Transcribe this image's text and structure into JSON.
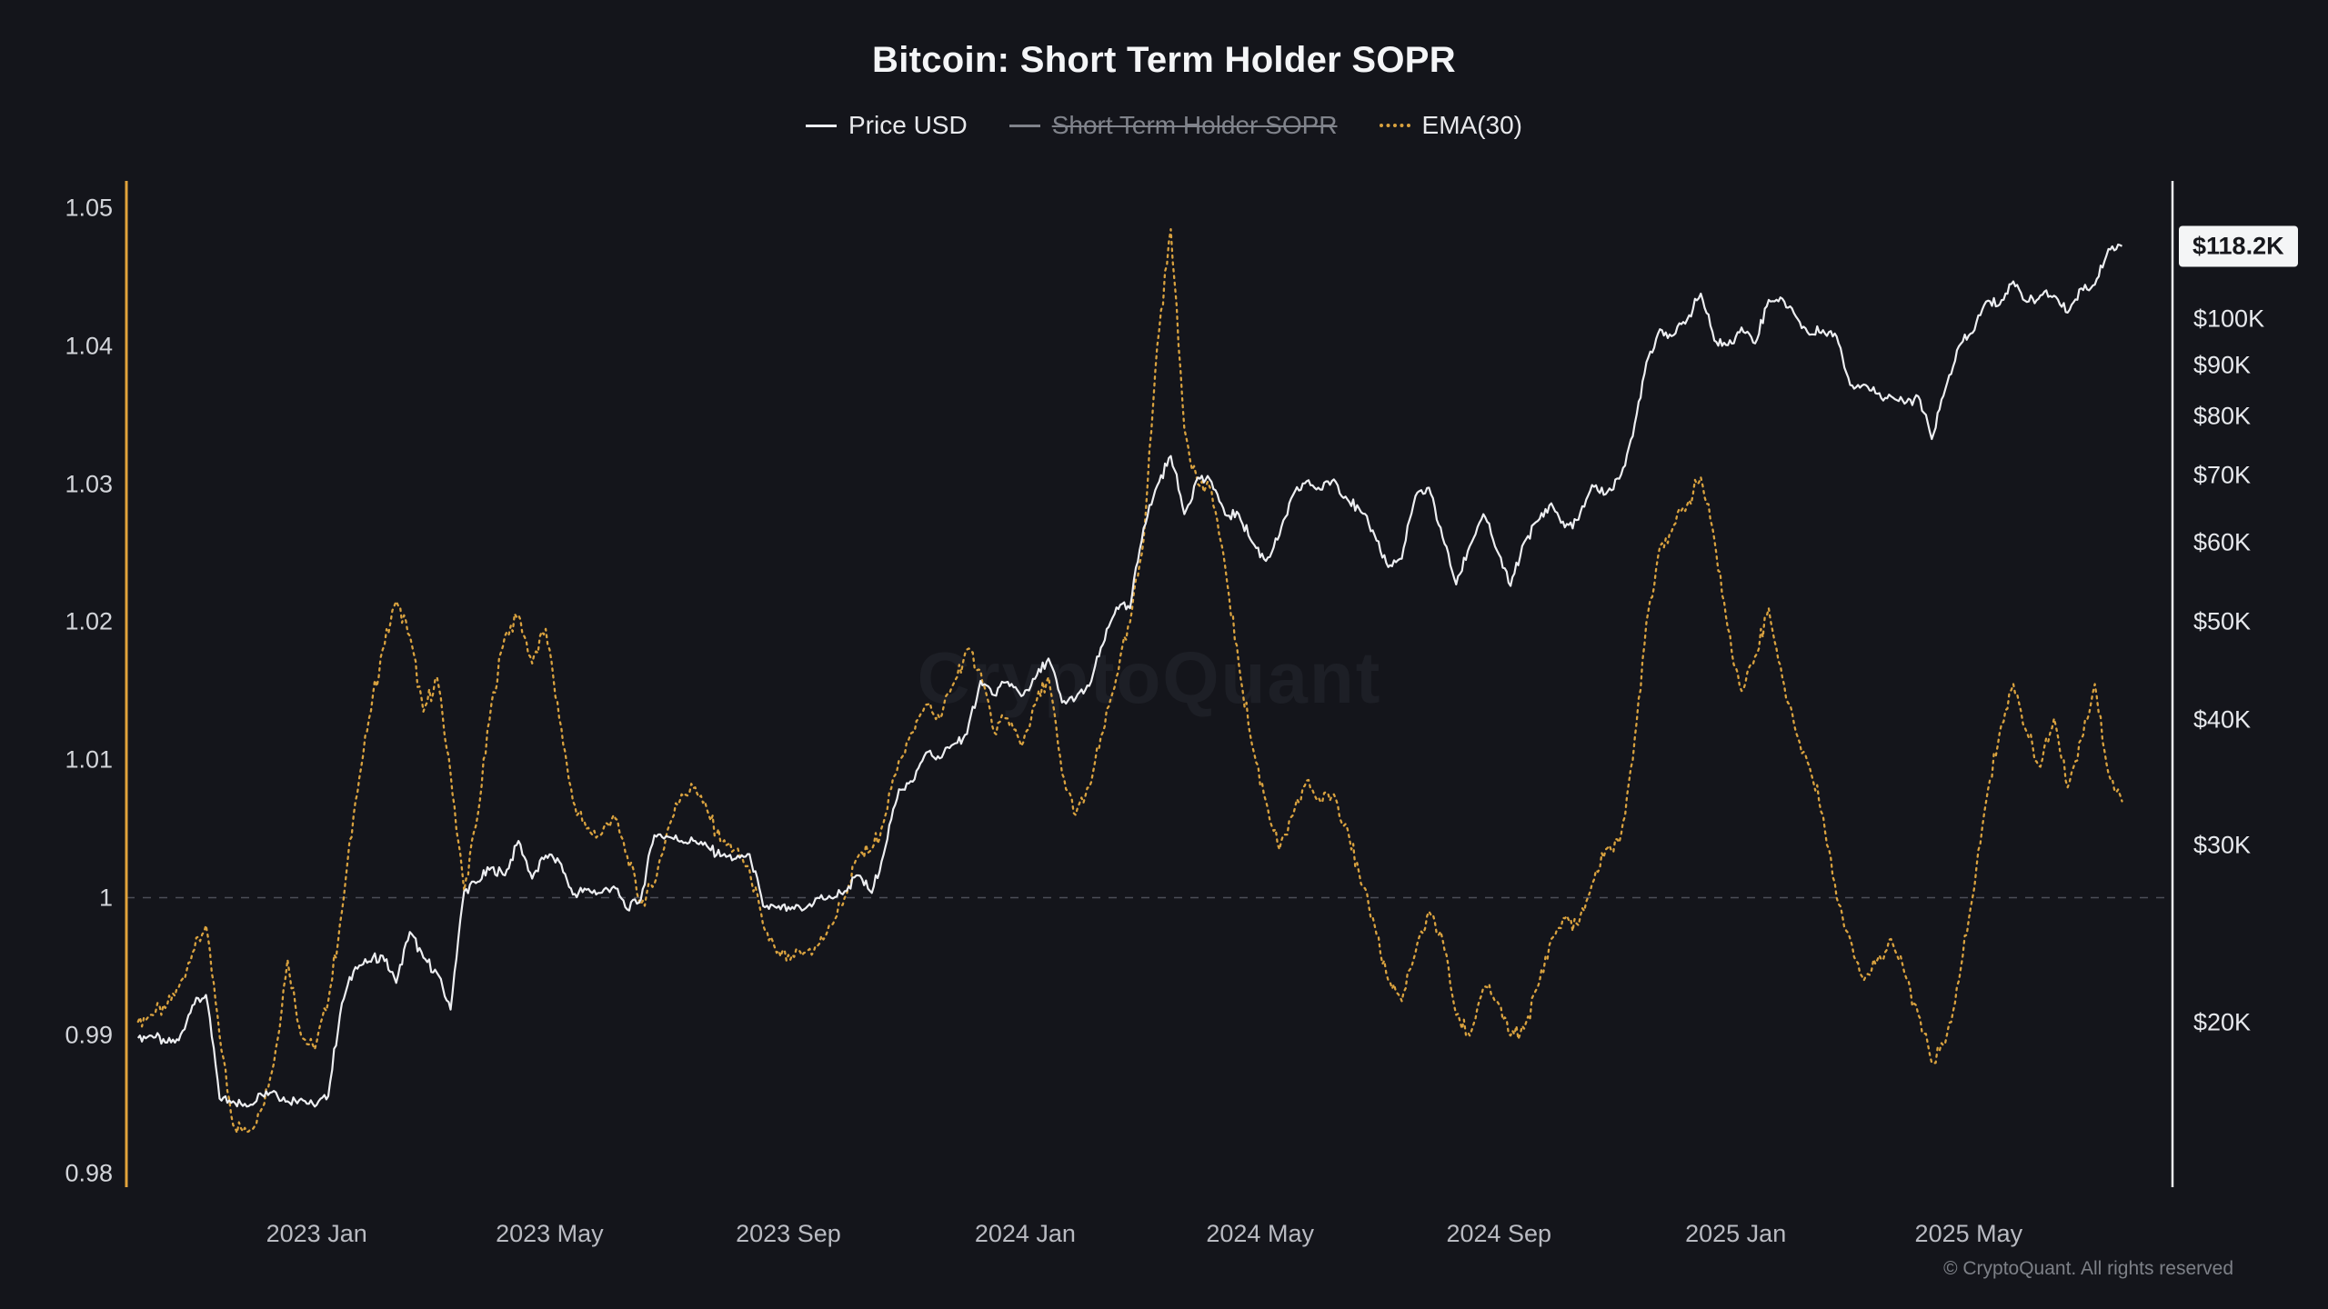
{
  "page": {
    "background": "#14151b"
  },
  "header": {
    "title": "Bitcoin: Short Term Holder SOPR"
  },
  "legend": {
    "items": [
      {
        "label": "Price USD",
        "color": "#edeef1",
        "style": "solid",
        "active": true
      },
      {
        "label": "Short Term Holder SOPR",
        "color": "#80838b",
        "style": "solid",
        "active": false
      },
      {
        "label": "EMA(30)",
        "color": "#d9a23f",
        "style": "dotted",
        "active": true
      }
    ]
  },
  "price_tag": {
    "label": "$118.2K",
    "value_k": 118.2
  },
  "watermark": {
    "text": "CryptoQuant"
  },
  "footer": {
    "copyright": "© CryptoQuant. All rights reserved"
  },
  "axes": {
    "left": {
      "labels": [
        "1.05",
        "1.04",
        "1.03",
        "1.02",
        "1.01",
        "1",
        "0.99",
        "0.98"
      ],
      "values": [
        1.05,
        1.04,
        1.03,
        1.02,
        1.01,
        1,
        0.99,
        0.98
      ]
    },
    "right": {
      "labels": [
        "$100K",
        "$90K",
        "$80K",
        "$70K",
        "$60K",
        "$50K",
        "$40K",
        "$30K",
        "$20K"
      ],
      "values_k": [
        100,
        90,
        80,
        70,
        60,
        50,
        40,
        30,
        20
      ],
      "scale": "log"
    },
    "x": {
      "labels": [
        "2023 Jan",
        "2023 May",
        "2023 Sep",
        "2024 Jan",
        "2024 May",
        "2024 Sep",
        "2025 Jan",
        "2025 May"
      ],
      "dates": [
        "2023-01-01",
        "2023-05-01",
        "2023-09-01",
        "2024-01-01",
        "2024-05-01",
        "2024-09-01",
        "2025-01-01",
        "2025-05-01"
      ]
    }
  },
  "chart_data": {
    "type": "line",
    "title": "Bitcoin: Short Term Holder SOPR",
    "x_domain": [
      "2022-09-25",
      "2025-08-14"
    ],
    "left_axis_range": [
      0.979,
      1.052
    ],
    "right_axis_range_k": [
      13.72,
      137.2
    ],
    "baseline": {
      "axis": "left",
      "value": 1
    },
    "grid": "off",
    "legend_position": "top",
    "x_dates": [
      "2022-10-01",
      "2022-10-08",
      "2022-10-15",
      "2022-10-22",
      "2022-10-29",
      "2022-11-05",
      "2022-11-12",
      "2022-11-19",
      "2022-11-26",
      "2022-12-03",
      "2022-12-10",
      "2022-12-17",
      "2022-12-24",
      "2022-12-31",
      "2023-01-07",
      "2023-01-14",
      "2023-01-21",
      "2023-01-28",
      "2023-02-04",
      "2023-02-11",
      "2023-02-18",
      "2023-02-25",
      "2023-03-04",
      "2023-03-11",
      "2023-03-18",
      "2023-03-25",
      "2023-04-01",
      "2023-04-08",
      "2023-04-15",
      "2023-04-22",
      "2023-04-29",
      "2023-05-06",
      "2023-05-13",
      "2023-05-20",
      "2023-05-27",
      "2023-06-03",
      "2023-06-10",
      "2023-06-17",
      "2023-06-24",
      "2023-07-01",
      "2023-07-08",
      "2023-07-15",
      "2023-07-22",
      "2023-07-29",
      "2023-08-05",
      "2023-08-12",
      "2023-08-19",
      "2023-08-26",
      "2023-09-02",
      "2023-09-09",
      "2023-09-16",
      "2023-09-23",
      "2023-09-30",
      "2023-10-07",
      "2023-10-14",
      "2023-10-21",
      "2023-10-28",
      "2023-11-04",
      "2023-11-11",
      "2023-11-18",
      "2023-11-25",
      "2023-12-02",
      "2023-12-09",
      "2023-12-16",
      "2023-12-23",
      "2023-12-30",
      "2024-01-06",
      "2024-01-13",
      "2024-01-20",
      "2024-01-27",
      "2024-02-03",
      "2024-02-10",
      "2024-02-17",
      "2024-02-24",
      "2024-03-02",
      "2024-03-09",
      "2024-03-16",
      "2024-03-23",
      "2024-03-30",
      "2024-04-06",
      "2024-04-13",
      "2024-04-20",
      "2024-04-27",
      "2024-05-04",
      "2024-05-11",
      "2024-05-18",
      "2024-05-25",
      "2024-06-01",
      "2024-06-08",
      "2024-06-15",
      "2024-06-22",
      "2024-06-29",
      "2024-07-06",
      "2024-07-13",
      "2024-07-20",
      "2024-07-27",
      "2024-08-03",
      "2024-08-10",
      "2024-08-17",
      "2024-08-24",
      "2024-08-31",
      "2024-09-07",
      "2024-09-14",
      "2024-09-21",
      "2024-09-28",
      "2024-10-05",
      "2024-10-12",
      "2024-10-19",
      "2024-10-26",
      "2024-11-02",
      "2024-11-09",
      "2024-11-16",
      "2024-11-23",
      "2024-11-30",
      "2024-12-07",
      "2024-12-14",
      "2024-12-21",
      "2024-12-28",
      "2025-01-04",
      "2025-01-11",
      "2025-01-18",
      "2025-01-25",
      "2025-02-01",
      "2025-02-08",
      "2025-02-15",
      "2025-02-22",
      "2025-03-01",
      "2025-03-08",
      "2025-03-15",
      "2025-03-22",
      "2025-03-29",
      "2025-04-05",
      "2025-04-12",
      "2025-04-19",
      "2025-04-26",
      "2025-05-03",
      "2025-05-10",
      "2025-05-17",
      "2025-05-24",
      "2025-05-31",
      "2025-06-07",
      "2025-06-14",
      "2025-06-21",
      "2025-06-28",
      "2025-07-05",
      "2025-07-12",
      "2025-07-19"
    ],
    "series": [
      {
        "name": "Price USD",
        "axis": "right",
        "unit": "K USD",
        "color": "#edeef1",
        "line": "solid",
        "hidden": false,
        "values": [
          19.3,
          19.4,
          19.1,
          19.2,
          20.8,
          21.3,
          16.8,
          16.7,
          16.5,
          17.0,
          17.1,
          16.7,
          16.8,
          16.5,
          16.9,
          20.9,
          22.7,
          23.0,
          23.3,
          21.9,
          24.6,
          23.2,
          22.4,
          20.6,
          27.0,
          27.6,
          28.5,
          28.0,
          30.3,
          27.8,
          29.3,
          28.9,
          26.8,
          27.1,
          26.9,
          27.3,
          25.9,
          26.5,
          30.7,
          30.6,
          30.3,
          30.3,
          29.8,
          29.3,
          29.1,
          29.4,
          26.1,
          26.0,
          25.9,
          25.9,
          26.6,
          26.6,
          27.0,
          28.0,
          26.9,
          29.9,
          34.1,
          34.7,
          37.1,
          36.6,
          37.8,
          38.7,
          43.7,
          42.3,
          43.6,
          42.2,
          43.9,
          46.0,
          41.6,
          42.0,
          43.2,
          47.5,
          51.7,
          51.6,
          62.0,
          68.3,
          73.1,
          64.0,
          69.6,
          68.9,
          63.9,
          64.0,
          60.0,
          57.5,
          61.0,
          66.9,
          69.0,
          67.7,
          69.3,
          66.2,
          64.3,
          61.0,
          56.7,
          57.8,
          66.7,
          68.0,
          60.7,
          54.5,
          59.5,
          64.0,
          58.9,
          54.3,
          60.0,
          63.0,
          65.6,
          62.1,
          63.2,
          68.4,
          67.0,
          69.4,
          76.5,
          90.6,
          97.7,
          96.4,
          99.9,
          106.0,
          95.2,
          94.2,
          98.1,
          94.6,
          104.5,
          104.8,
          100.6,
          96.5,
          97.5,
          96.1,
          86.0,
          86.1,
          84.3,
          83.8,
          82.4,
          83.8,
          76.0,
          85.2,
          94.0,
          96.9,
          104.1,
          103.4,
          109.0,
          104.0,
          105.6,
          105.5,
          101.5,
          107.3,
          108.2,
          117.4,
          118.2
        ]
      },
      {
        "name": "Short Term Holder SOPR",
        "axis": "left",
        "color": "#80838b",
        "line": "solid",
        "hidden": true,
        "values": []
      },
      {
        "name": "EMA(30)",
        "axis": "left",
        "color": "#d9a23f",
        "line": "dotted",
        "hidden": false,
        "values": [
          0.991,
          0.9915,
          0.992,
          0.9935,
          0.996,
          0.998,
          0.99,
          0.9835,
          0.983,
          0.9845,
          0.988,
          0.9955,
          0.99,
          0.989,
          0.9925,
          0.999,
          1.007,
          1.013,
          1.018,
          1.0215,
          1.019,
          1.0135,
          1.016,
          1.009,
          1.0005,
          1.006,
          1.014,
          1.019,
          1.0205,
          1.017,
          1.0195,
          1.013,
          1.007,
          1.005,
          1.0045,
          1.006,
          1.003,
          0.9995,
          1.001,
          1.005,
          1.0075,
          1.008,
          1.006,
          1.004,
          1.0035,
          1.002,
          0.998,
          0.996,
          0.9955,
          0.996,
          0.9965,
          0.998,
          1.0,
          1.003,
          1.0035,
          1.006,
          1.01,
          1.012,
          1.014,
          1.013,
          1.0155,
          1.018,
          1.0165,
          1.012,
          1.013,
          1.011,
          1.014,
          1.016,
          1.009,
          1.006,
          1.008,
          1.012,
          1.016,
          1.02,
          1.026,
          1.04,
          1.0485,
          1.034,
          1.03,
          1.0295,
          1.024,
          1.017,
          1.011,
          1.007,
          1.0035,
          1.006,
          1.0085,
          1.007,
          1.0075,
          1.005,
          1.001,
          0.998,
          0.994,
          0.9925,
          0.996,
          0.999,
          0.997,
          0.9915,
          0.99,
          0.9935,
          0.9925,
          0.99,
          0.9905,
          0.9935,
          0.997,
          0.9985,
          0.998,
          1.001,
          1.0035,
          1.004,
          1.01,
          1.02,
          1.0255,
          1.027,
          1.0285,
          1.0305,
          1.026,
          1.0195,
          1.015,
          1.0175,
          1.021,
          1.016,
          1.012,
          1.0095,
          1.006,
          1.0,
          0.997,
          0.994,
          0.9955,
          0.997,
          0.9945,
          0.9915,
          0.988,
          0.9895,
          0.994,
          1.0,
          1.007,
          1.012,
          1.0155,
          1.012,
          1.0095,
          1.013,
          1.008,
          1.0115,
          1.0155,
          1.009,
          1.007
        ]
      }
    ]
  }
}
